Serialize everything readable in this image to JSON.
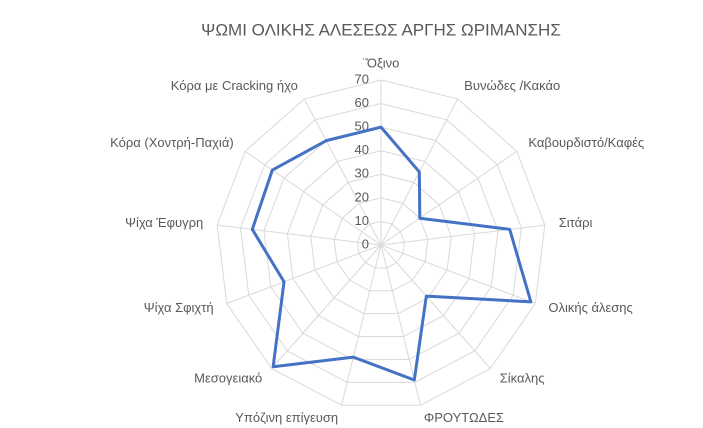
{
  "chart_data": {
    "type": "radar",
    "title": "ΨΩΜΙ ΟΛΙΚΗΣ ΑΛΕΣΕΩΣ ΑΡΓΗΣ ΩΡΙΜΑΝΣΗΣ",
    "categories": [
      "¨Όξινο",
      "Βυνώδες /Κακάο",
      "Καβουρδιστό/Καφές",
      "Σιτάρι",
      "Ολικής άλεσης",
      "Σίκαλης",
      "ΦΡΟΥΤΩΔΕΣ",
      "Υπόζινη επίγευση",
      "Μεσογειακό",
      "Ψίχα Σφιχτή",
      "Ψίχα Έφυγρη",
      "Κόρα (Χοντρή-Παχιά)",
      "Κόρα με Cracking ήχο"
    ],
    "values": [
      50,
      35,
      20,
      55,
      68,
      29,
      59,
      49,
      69,
      44,
      55,
      56,
      50
    ],
    "color": "#4472c4",
    "ylim": [
      0,
      70
    ],
    "yticks": [
      0,
      10,
      20,
      30,
      40,
      50,
      60,
      70
    ],
    "grid": true
  }
}
